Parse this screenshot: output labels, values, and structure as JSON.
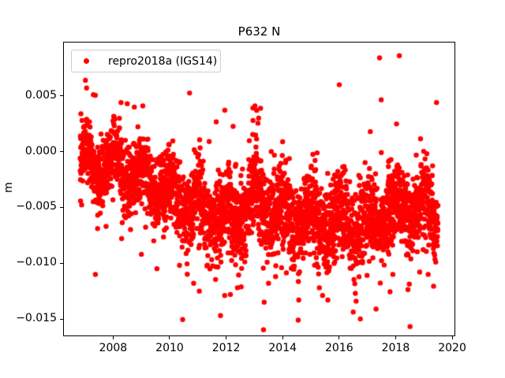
{
  "chart_data": {
    "type": "scatter",
    "title": "P632 N",
    "xlabel": "",
    "ylabel": "m",
    "series_name": "repro2018a (IGS14)",
    "marker_color": "#ff0000",
    "marker_radius_px": 3.2,
    "axis_color": "#000000",
    "legend_border_color": "#cccccc",
    "legend_position": "upper left",
    "grid": false,
    "xlim": [
      2006.23,
      2020.11
    ],
    "ylim": [
      -0.01655,
      0.00985
    ],
    "xticks": [
      2008,
      2010,
      2012,
      2014,
      2016,
      2018,
      2020
    ],
    "xtick_labels": [
      "2008",
      "2010",
      "2012",
      "2014",
      "2016",
      "2018",
      "2020"
    ],
    "yticks": [
      0.005,
      0.0,
      -0.005,
      -0.01,
      -0.015
    ],
    "ytick_labels": [
      "0.005",
      "0.000",
      "−0.005",
      "−0.010",
      "−0.015"
    ],
    "x_data_range": [
      2006.83,
      2019.5
    ],
    "n_points": 3400,
    "seed": 42,
    "trend_keypoints": [
      [
        2006.83,
        -0.0007
      ],
      [
        2007.5,
        -0.0013
      ],
      [
        2008.2,
        -0.0013
      ],
      [
        2009.0,
        -0.0024
      ],
      [
        2009.8,
        -0.0033
      ],
      [
        2010.5,
        -0.0046
      ],
      [
        2011.2,
        -0.0055
      ],
      [
        2012.0,
        -0.0059
      ],
      [
        2012.55,
        -0.0056
      ],
      [
        2013.05,
        -0.0038
      ],
      [
        2013.5,
        -0.005
      ],
      [
        2014.2,
        -0.0059
      ],
      [
        2015.0,
        -0.0062
      ],
      [
        2015.8,
        -0.0059
      ],
      [
        2016.4,
        -0.0068
      ],
      [
        2017.0,
        -0.0063
      ],
      [
        2017.7,
        -0.0055
      ],
      [
        2018.3,
        -0.0047
      ],
      [
        2018.9,
        -0.0052
      ],
      [
        2019.5,
        -0.0057
      ]
    ],
    "sigma_keypoints": [
      [
        2006.83,
        0.0013
      ],
      [
        2008.5,
        0.0015
      ],
      [
        2010.5,
        0.0018
      ],
      [
        2012.0,
        0.0019
      ],
      [
        2019.5,
        0.0018
      ]
    ],
    "seasonal": {
      "amplitude": 0.0012,
      "phase": 0.02
    },
    "outlier_fraction": 0.035,
    "outlier_scale": 2.6,
    "outliers": [
      [
        2007.02,
        0.0064
      ],
      [
        2007.06,
        0.0057
      ],
      [
        2007.3,
        0.0051
      ],
      [
        2008.28,
        0.0044
      ],
      [
        2008.5,
        0.0043
      ],
      [
        2008.75,
        0.004
      ],
      [
        2009.05,
        0.0041
      ],
      [
        2013.02,
        0.0041
      ],
      [
        2013.08,
        0.0037
      ],
      [
        2013.15,
        0.003
      ],
      [
        2012.95,
        0.0028
      ],
      [
        2017.43,
        0.0084
      ],
      [
        2007.45,
        -0.0069
      ],
      [
        2007.75,
        -0.0067
      ],
      [
        2008.3,
        -0.0078
      ],
      [
        2009.0,
        -0.0092
      ],
      [
        2009.55,
        -0.0105
      ],
      [
        2010.35,
        -0.0102
      ],
      [
        2010.85,
        -0.0118
      ],
      [
        2011.05,
        -0.0125
      ],
      [
        2011.8,
        -0.0147
      ],
      [
        2011.95,
        -0.0129
      ],
      [
        2012.15,
        -0.0128
      ],
      [
        2012.4,
        -0.0122
      ],
      [
        2013.5,
        -0.0118
      ],
      [
        2013.75,
        -0.0112
      ],
      [
        2014.55,
        -0.0151
      ],
      [
        2014.57,
        -0.0133
      ],
      [
        2015.3,
        -0.0122
      ],
      [
        2015.6,
        -0.0133
      ],
      [
        2016.6,
        -0.0134
      ],
      [
        2016.75,
        -0.015
      ],
      [
        2017.9,
        -0.011
      ],
      [
        2018.85,
        -0.0108
      ],
      [
        2019.15,
        -0.011
      ]
    ]
  }
}
